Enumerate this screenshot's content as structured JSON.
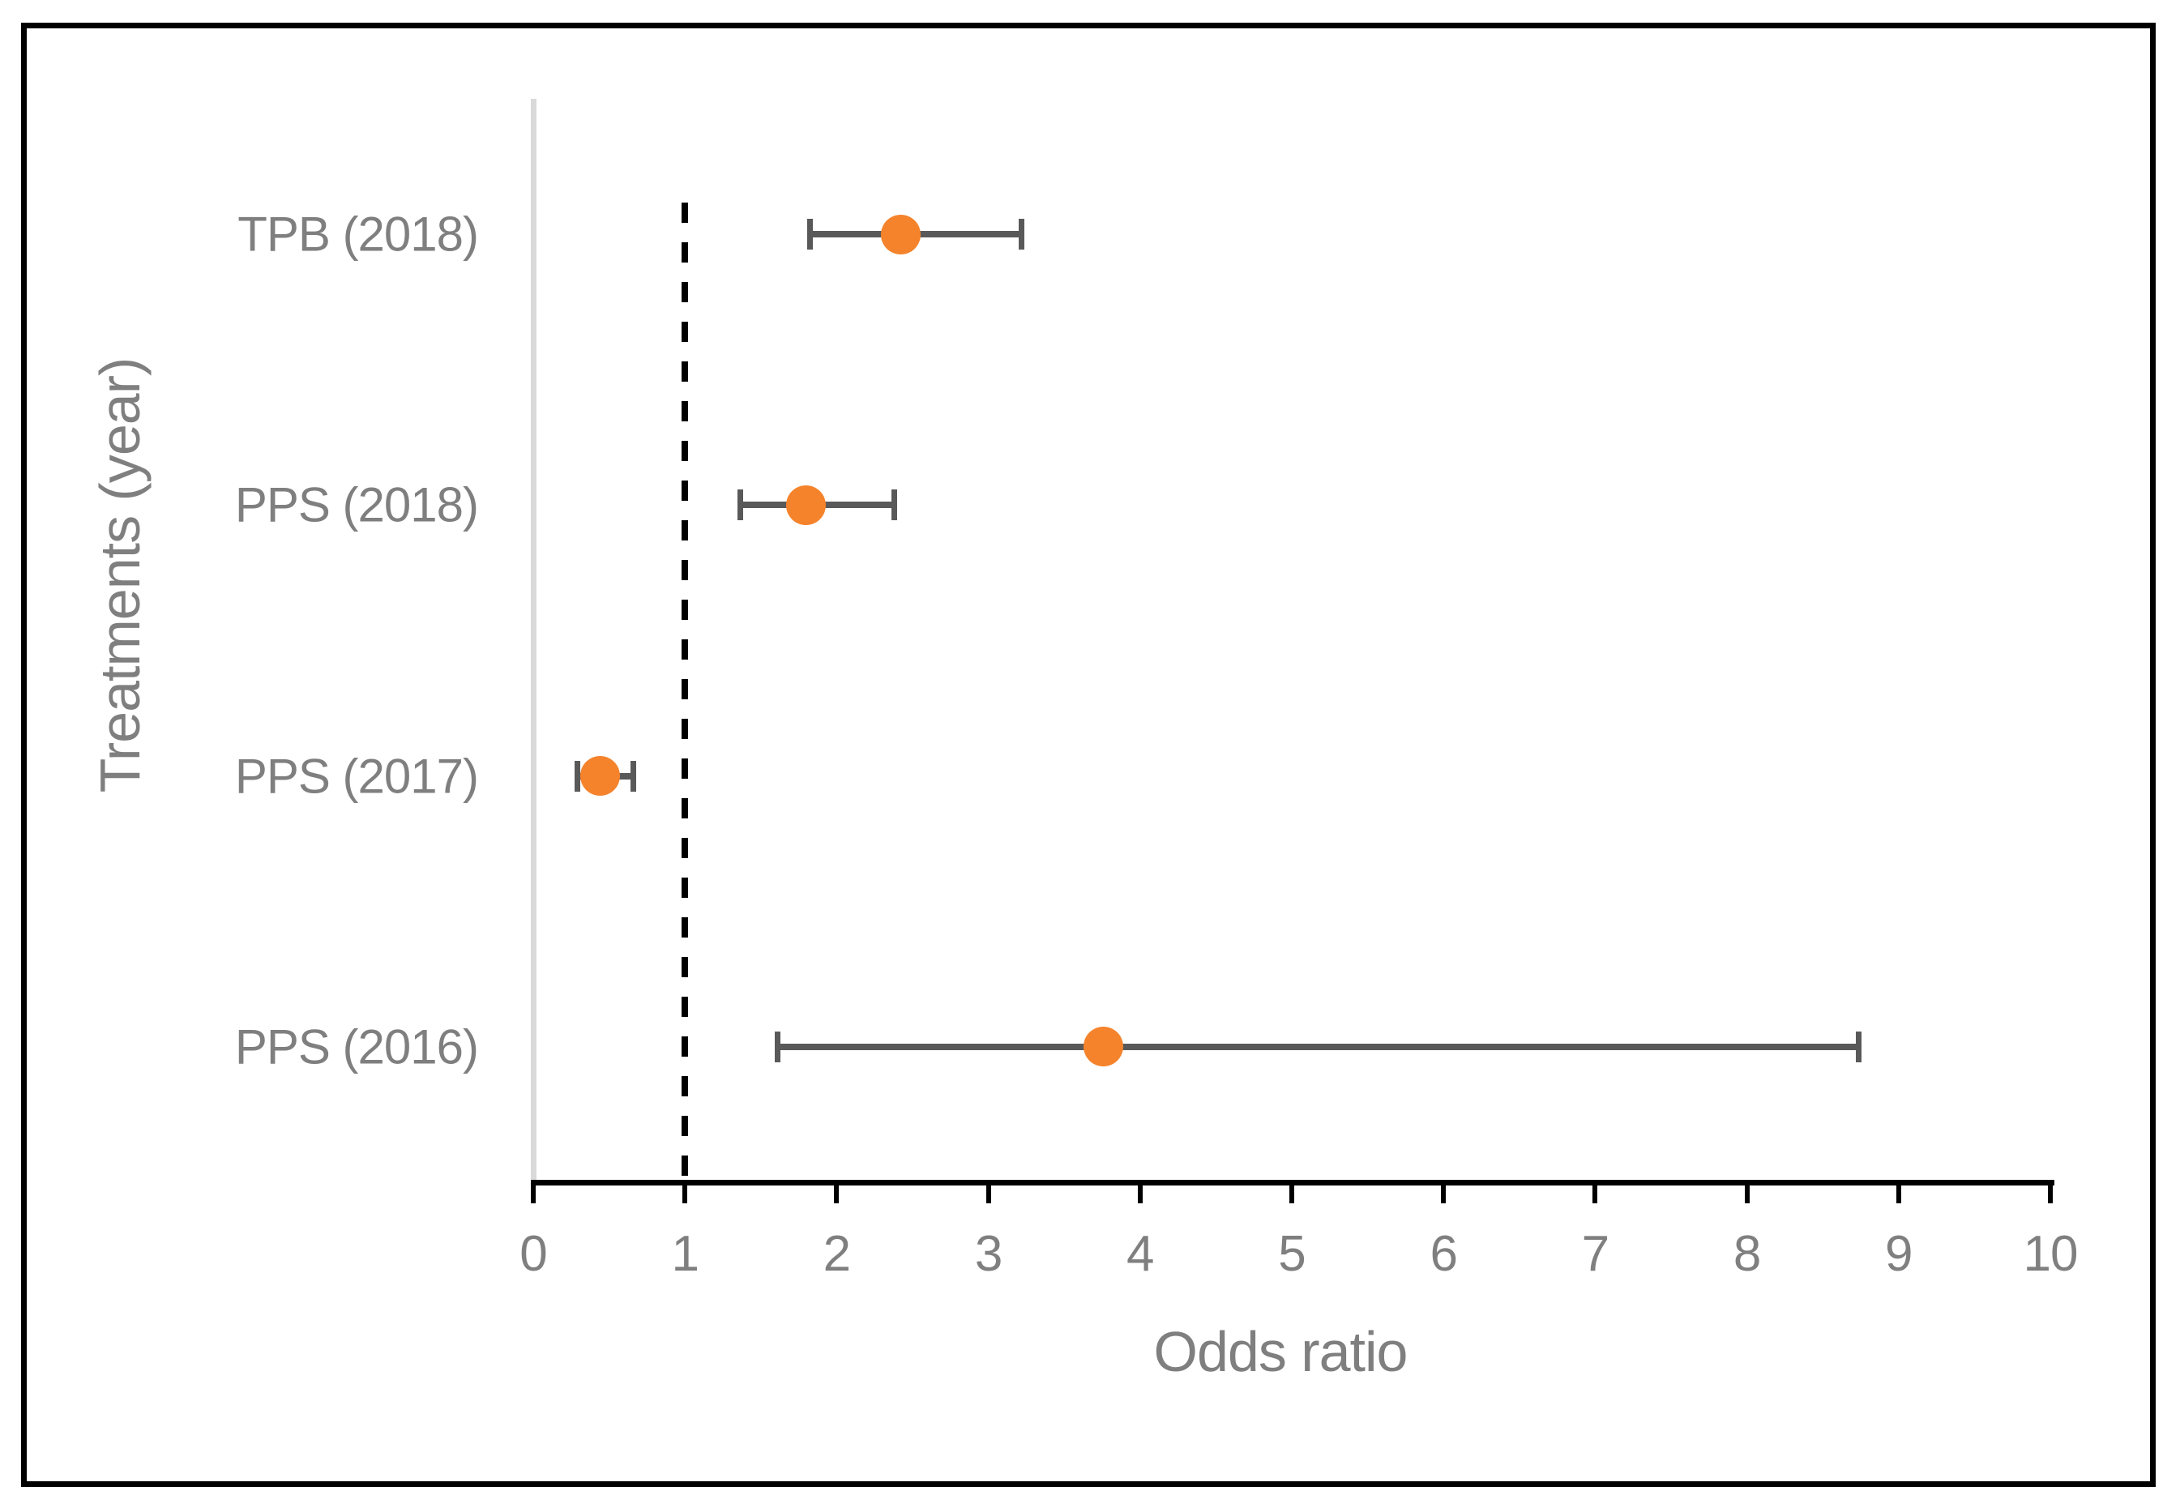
{
  "figure": {
    "background_color": "#ffffff",
    "frame_color": "#000000"
  },
  "chart_data": {
    "type": "scatter",
    "subtype": "forest-plot",
    "title": "",
    "xlabel": "Odds ratio",
    "ylabel": "Treatments (year)",
    "xlim": [
      0,
      10
    ],
    "x_ticks": [
      0,
      1,
      2,
      3,
      4,
      5,
      6,
      7,
      8,
      9,
      10
    ],
    "grid": false,
    "legend": "none",
    "reference_line": {
      "x": 1,
      "style": "dashed",
      "color": "#000000"
    },
    "zero_axis_line_color": "#D9D9D9",
    "marker_color": "#F5832B",
    "error_bar_color": "#595959",
    "axis_text_color": "#7F7F7F",
    "categories": [
      "TPB (2018)",
      "PPS (2018)",
      "PPS (2017)",
      "PPS (2016)"
    ],
    "points": [
      {
        "label": "TPB (2018)",
        "or": 2.42,
        "ci_low": 1.82,
        "ci_high": 3.22
      },
      {
        "label": "PPS (2018)",
        "or": 1.8,
        "ci_low": 1.36,
        "ci_high": 2.38
      },
      {
        "label": "PPS (2017)",
        "or": 0.44,
        "ci_low": 0.29,
        "ci_high": 0.66
      },
      {
        "label": "PPS (2016)",
        "or": 3.76,
        "ci_low": 1.61,
        "ci_high": 8.74
      }
    ]
  }
}
